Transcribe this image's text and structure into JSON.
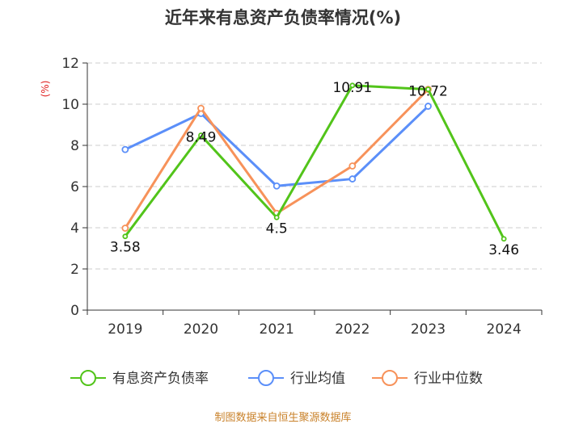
{
  "chart_data": {
    "type": "line",
    "title": "近年来有息资产负债率情况(%)",
    "ylabel": "(%)",
    "xlabel": "",
    "categories": [
      "2019",
      "2020",
      "2021",
      "2022",
      "2023",
      "2024"
    ],
    "ylim": [
      0,
      12
    ],
    "yticks": [
      0,
      2,
      4,
      6,
      8,
      10,
      12
    ],
    "grid": true,
    "legend_position": "bottom",
    "series": [
      {
        "name": "有息资产负债率",
        "color": "#52c41a",
        "values": [
          3.58,
          8.49,
          4.5,
          10.91,
          10.72,
          3.46
        ],
        "data_labels": [
          "3.58",
          "8.49",
          "4.5",
          "10.91",
          "10.72",
          "3.46"
        ]
      },
      {
        "name": "行业均值",
        "color": "#5b8ff9",
        "values": [
          7.8,
          9.55,
          6.03,
          6.37,
          9.9,
          null
        ]
      },
      {
        "name": "行业中位数",
        "color": "#f7925a",
        "values": [
          3.98,
          9.8,
          4.7,
          7.0,
          10.72,
          null
        ]
      }
    ]
  },
  "source": "制图数据来自恒生聚源数据库"
}
